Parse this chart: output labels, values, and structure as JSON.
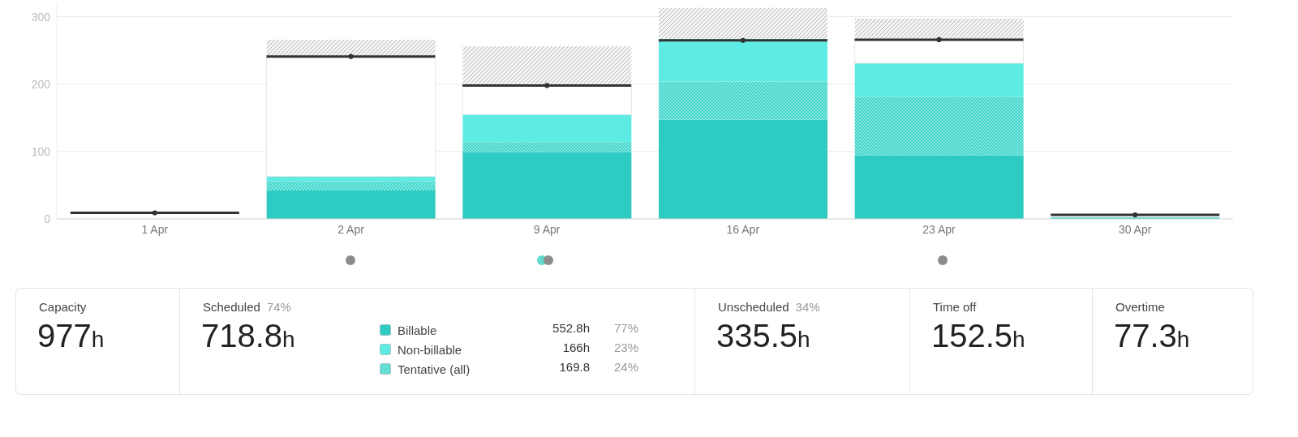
{
  "chart_data": [
    {
      "type": "bar",
      "stacked": true,
      "categories": [
        "1 Apr",
        "2 Apr",
        "9 Apr",
        "16 Apr",
        "23 Apr",
        "30 Apr"
      ],
      "series": [
        {
          "name": "Billable",
          "color": "#2ecbc2",
          "values": [
            null,
            42,
            99,
            147,
            94,
            2
          ]
        },
        {
          "name": "Tentative (all)",
          "color": "#3fd6cc",
          "values": [
            null,
            14,
            15,
            57,
            87,
            null
          ]
        },
        {
          "name": "Non-billable",
          "color": "#5eebe3",
          "values": [
            null,
            7,
            41,
            63,
            50,
            null
          ]
        },
        {
          "color": "#ffffff",
          "values": [
            null,
            178,
            43,
            null,
            35,
            null
          ]
        },
        {
          "color": "#b0b0b0",
          "values": [
            null,
            25,
            58,
            46,
            31,
            null
          ]
        },
        {
          "type": "scatter",
          "color": "#333333",
          "values": [
            9,
            241,
            198,
            265,
            266,
            6
          ]
        }
      ],
      "ylim": [
        0,
        320
      ],
      "yticks": [
        0,
        100,
        200,
        300
      ],
      "grid": "y",
      "legend": "bottom"
    },
    {
      "type": "other",
      "annotations": [
        "Capacity",
        "977h",
        "Scheduled",
        "74%",
        "718.8h",
        "552.8h",
        "77%",
        "166h",
        "23%",
        "169.8",
        "24%",
        "Unscheduled",
        "34%",
        "335.5h",
        "Time off",
        "152.5h",
        "Overtime",
        "77.3h"
      ]
    }
  ]
}
